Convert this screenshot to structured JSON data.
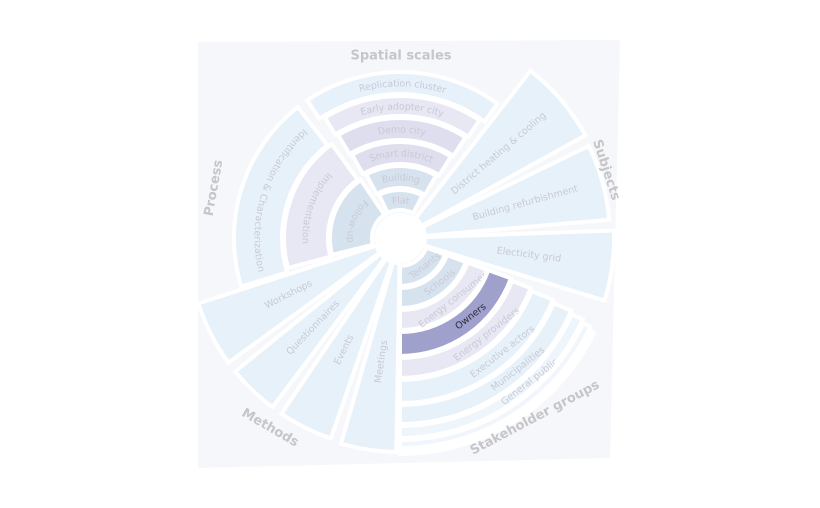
{
  "diagram": {
    "categories": [
      {
        "name": "Spatial scales",
        "segments": [
          "Flat",
          "Building",
          "Smart district",
          "Demo city",
          "Early adopter city",
          "Replication cluster"
        ]
      },
      {
        "name": "Subjects",
        "segments": [
          "District heating & cooling",
          "Building refurbishment",
          "Electicity grid"
        ]
      },
      {
        "name": "Stakeholder groups",
        "segments": [
          "Tenants",
          "Schools",
          "Energy consumers",
          "Owners",
          "Energy providers",
          "Executive actors",
          "Municipalities",
          "General public",
          "",
          ""
        ]
      },
      {
        "name": "Methods",
        "segments": [
          "Meetings",
          "Events",
          "Questionnaires",
          "Workshops"
        ]
      },
      {
        "name": "Process",
        "segments": [
          "Follow-up",
          "Implementation",
          "Identification & Characterization"
        ]
      }
    ],
    "highlighted": "Owners",
    "colors": {
      "light_blue": "#e6f1f9",
      "lavender": "#e8e8f4",
      "lilac": "#dedeee",
      "steel": "#d6e3ef",
      "highlight": "#a0a0cc",
      "label": "#c9c9d6",
      "category_label": "#c6c6c8",
      "card": "#f5f7fa"
    }
  }
}
